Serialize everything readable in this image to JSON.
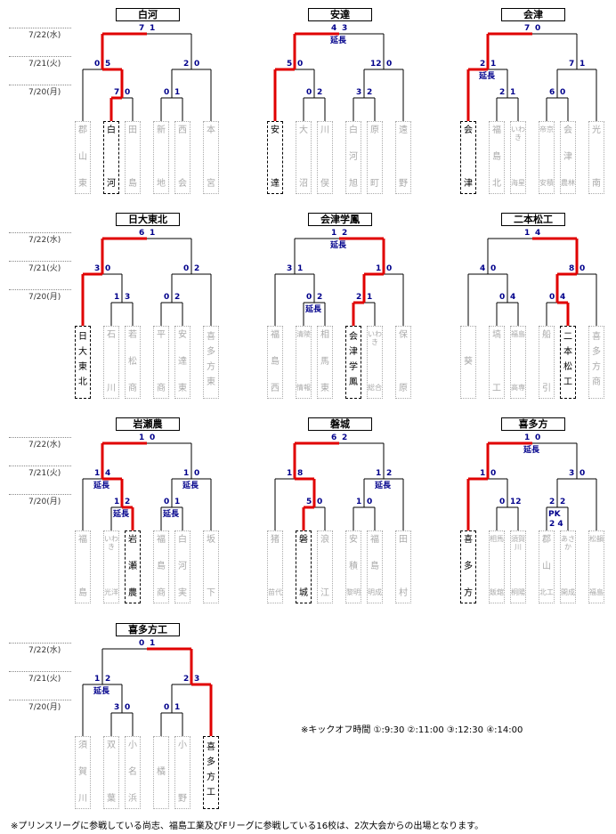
{
  "dates": [
    "7/22(水)",
    "7/21(火)",
    "7/20(月)"
  ],
  "brackets": [
    {
      "title": "白河",
      "teams": [
        [
          "郡",
          "山",
          "東"
        ],
        [
          "白",
          "",
          "河"
        ],
        [
          "田",
          "",
          "島"
        ],
        [
          "新",
          "",
          "地"
        ],
        [
          "西",
          "",
          "会"
        ],
        [
          "本",
          "",
          "宮"
        ]
      ],
      "win": [
        1
      ],
      "s1": [
        null,
        [
          "7",
          "0"
        ],
        null,
        [
          "0",
          "1"
        ],
        null
      ],
      "s2": [
        [
          "0",
          "5"
        ],
        [
          "2",
          "0"
        ]
      ],
      "final": [
        "7",
        "1"
      ],
      "ext": []
    },
    {
      "title": "安達",
      "teams": [
        [
          "安",
          "",
          "達"
        ],
        [
          "大",
          "",
          "沼"
        ],
        [
          "川",
          "",
          "俣"
        ],
        [
          "白",
          "河",
          "旭"
        ],
        [
          "原",
          "",
          "町"
        ],
        [
          "遠",
          "",
          "野"
        ]
      ],
      "win": [
        0
      ],
      "s1": [
        null,
        [
          "0",
          "2"
        ],
        null,
        [
          "3",
          "2"
        ],
        null
      ],
      "s2": [
        [
          "5",
          "0"
        ],
        [
          "12",
          "0"
        ]
      ],
      "final": [
        "4",
        "3"
      ],
      "ext": [
        {
          "at": "final",
          "t": "延長"
        }
      ]
    },
    {
      "title": "会津",
      "teams": [
        [
          "会",
          "",
          "津"
        ],
        [
          "福",
          "島",
          "北"
        ],
        [
          "いわき",
          "",
          "海星"
        ],
        [
          "帝京",
          "",
          "安積"
        ],
        [
          "会",
          "津",
          "農林"
        ],
        [
          "光",
          "",
          "南"
        ]
      ],
      "win": [
        0
      ],
      "s1": [
        null,
        [
          "2",
          "1"
        ],
        null,
        [
          "6",
          "0"
        ],
        null
      ],
      "s2": [
        [
          "2",
          "1"
        ],
        [
          "7",
          "1"
        ]
      ],
      "final": [
        "7",
        "0"
      ],
      "ext": [
        {
          "at": "s2L",
          "t": "延長"
        }
      ]
    },
    {
      "title": "日大東北",
      "teams": [
        [
          "日",
          "大",
          "東",
          "北"
        ],
        [
          "石",
          "",
          "川"
        ],
        [
          "若",
          "松",
          "商"
        ],
        [
          "平",
          "",
          "商"
        ],
        [
          "安",
          "達",
          "東"
        ],
        [
          "喜",
          "多",
          "方",
          "東"
        ]
      ],
      "win": [
        0
      ],
      "s1": [
        null,
        [
          "1",
          "3"
        ],
        null,
        [
          "0",
          "2"
        ],
        null
      ],
      "s2": [
        [
          "3",
          "0"
        ],
        [
          "0",
          "2"
        ]
      ],
      "final": [
        "6",
        "1"
      ],
      "ext": []
    },
    {
      "title": "会津学鳳",
      "teams": [
        [
          "福",
          "島",
          "西"
        ],
        [
          "清陵",
          "",
          "情報"
        ],
        [
          "相",
          "馬",
          "東"
        ],
        [
          "会",
          "津",
          "学",
          "鳳"
        ],
        [
          "いわき",
          "",
          "総合"
        ],
        [
          "保",
          "",
          "原"
        ]
      ],
      "win": [
        3
      ],
      "s1": [
        null,
        [
          "0",
          "2"
        ],
        null,
        [
          "2",
          "1"
        ],
        null
      ],
      "s2": [
        [
          "3",
          "1"
        ],
        [
          "1",
          "0"
        ]
      ],
      "final": [
        "1",
        "2"
      ],
      "ext": [
        {
          "at": "final",
          "t": "延長"
        },
        {
          "at": "s1L",
          "t": "延長"
        }
      ]
    },
    {
      "title": "二本松工",
      "teams": [
        [
          "",
          "葵",
          ""
        ],
        [
          "塙",
          "",
          "工"
        ],
        [
          "福島",
          "",
          "高専"
        ],
        [
          "船",
          "",
          "引"
        ],
        [
          "二",
          "本",
          "松",
          "工"
        ],
        [
          "喜",
          "多",
          "方",
          "商"
        ]
      ],
      "win": [
        4
      ],
      "s1": [
        null,
        [
          "0",
          "4"
        ],
        null,
        [
          "0",
          "4"
        ],
        null
      ],
      "s2": [
        [
          "4",
          "0"
        ],
        [
          "8",
          "0"
        ]
      ],
      "final": [
        "1",
        "4"
      ],
      "ext": []
    },
    {
      "title": "岩瀬農",
      "teams": [
        [
          "福",
          "",
          "島"
        ],
        [
          "いわき",
          "",
          "光洋"
        ],
        [
          "岩",
          "瀬",
          "農"
        ],
        [
          "福",
          "島",
          "商"
        ],
        [
          "白",
          "河",
          "実"
        ],
        [
          "坂",
          "",
          "下"
        ]
      ],
      "win": [
        2
      ],
      "s1": [
        null,
        [
          "1",
          "2"
        ],
        null,
        [
          "0",
          "1"
        ],
        null
      ],
      "s2": [
        [
          "1",
          "4"
        ],
        [
          "1",
          "0"
        ]
      ],
      "final": [
        "1",
        "0"
      ],
      "ext": [
        {
          "at": "s2L",
          "t": "延長"
        },
        {
          "at": "s2R",
          "t": "延長"
        },
        {
          "at": "s1L",
          "t": "延長"
        },
        {
          "at": "s1R",
          "t": "延長"
        }
      ]
    },
    {
      "title": "磐城",
      "teams": [
        [
          "猪",
          "",
          "苗代"
        ],
        [
          "磐",
          "",
          "城"
        ],
        [
          "浪",
          "",
          "江"
        ],
        [
          "安",
          "積",
          "黎明"
        ],
        [
          "福",
          "島",
          "明成"
        ],
        [
          "田",
          "",
          "村"
        ]
      ],
      "win": [
        1
      ],
      "s1": [
        null,
        [
          "5",
          "0"
        ],
        null,
        [
          "1",
          "0"
        ],
        null
      ],
      "s2": [
        [
          "1",
          "8"
        ],
        [
          "1",
          "2"
        ]
      ],
      "final": [
        "6",
        "2"
      ],
      "ext": [
        {
          "at": "s2R",
          "t": "延長"
        }
      ]
    },
    {
      "title": "喜多方",
      "teams": [
        [
          "喜",
          "多",
          "方"
        ],
        [
          "相馬",
          "",
          "飯舘"
        ],
        [
          "須賀川",
          "",
          "桐陽"
        ],
        [
          "郡",
          "山",
          "北工"
        ],
        [
          "あさか",
          "",
          "開成"
        ],
        [
          "松韻",
          "",
          "福島"
        ]
      ],
      "win": [
        0
      ],
      "s1": [
        null,
        [
          "0",
          "12"
        ],
        null,
        [
          "2",
          "2"
        ],
        null
      ],
      "s2": [
        [
          "1",
          "0"
        ],
        [
          "3",
          "0"
        ]
      ],
      "final": [
        "1",
        "0"
      ],
      "ext": [
        {
          "at": "final",
          "t": "延長"
        }
      ],
      "pk": [
        "PK",
        "2 4"
      ]
    },
    {
      "title": "喜多方工",
      "teams": [
        [
          "須",
          "賀",
          "川"
        ],
        [
          "双",
          "",
          "葉"
        ],
        [
          "小",
          "名",
          "浜"
        ],
        [
          "",
          "橘",
          ""
        ],
        [
          "小",
          "",
          "野"
        ],
        [
          "喜",
          "多",
          "方",
          "工"
        ]
      ],
      "win": [
        5
      ],
      "s1": [
        null,
        [
          "3",
          "0"
        ],
        null,
        [
          "0",
          "1"
        ],
        null
      ],
      "s2": [
        [
          "1",
          "2"
        ],
        [
          "2",
          "3"
        ]
      ],
      "final": [
        "0",
        "1"
      ],
      "ext": [
        {
          "at": "s2L",
          "t": "延長"
        }
      ]
    }
  ],
  "notes": {
    "kickoff": "※キックオフ時間 ①:9:30 ②:11:00 ③:12:30 ④:14:00",
    "footer": "※プリンスリーグに参戦している尚志、福島工業及びFリーグに参戦している16校は、2次大会からの出場となります。"
  },
  "colors": {
    "winner": "#e00000",
    "loser": "#000000",
    "score": "#00008b"
  }
}
